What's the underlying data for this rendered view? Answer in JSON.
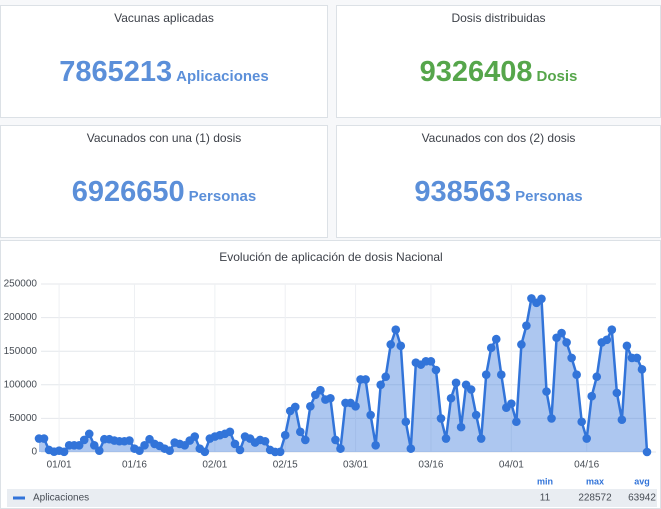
{
  "panels": [
    {
      "title": "Vacunas aplicadas",
      "value": 7865213,
      "unit": "Aplicaciones",
      "color": "#5b8fd9"
    },
    {
      "title": "Dosis distribuidas",
      "value": 9326408,
      "unit": "Dosis",
      "color": "#56a64b"
    },
    {
      "title": "Vacunados con una (1) dosis",
      "value": 6926650,
      "unit": "Personas",
      "color": "#5b8fd9"
    },
    {
      "title": "Vacunados con dos (2) dosis",
      "value": 938563,
      "unit": "Personas",
      "color": "#5b8fd9"
    }
  ],
  "chart_data": {
    "type": "line",
    "title": "Evolución de aplicación de dosis Nacional",
    "categories": [
      null,
      null,
      null,
      null,
      "01/01",
      null,
      null,
      null,
      null,
      null,
      null,
      null,
      null,
      null,
      null,
      null,
      null,
      null,
      null,
      "01/16",
      null,
      null,
      null,
      null,
      null,
      null,
      null,
      null,
      null,
      null,
      null,
      null,
      null,
      null,
      null,
      "02/01",
      null,
      null,
      null,
      null,
      null,
      null,
      null,
      null,
      null,
      null,
      null,
      null,
      null,
      "02/15",
      null,
      null,
      null,
      null,
      null,
      null,
      null,
      null,
      null,
      null,
      null,
      null,
      null,
      "03/01",
      null,
      null,
      null,
      null,
      null,
      null,
      null,
      null,
      null,
      null,
      null,
      null,
      null,
      null,
      "03/16",
      null,
      null,
      null,
      null,
      null,
      null,
      null,
      null,
      null,
      null,
      null,
      null,
      null,
      null,
      null,
      "04/01",
      null,
      null,
      null,
      null,
      null,
      null,
      null,
      null,
      null,
      null,
      null,
      null,
      null,
      null,
      "04/16",
      null,
      null,
      null,
      null,
      null,
      null,
      null,
      null,
      null,
      null,
      null,
      null
    ],
    "series": [
      {
        "name": "Aplicaciones",
        "color": "#3274d9",
        "values": [
          20000,
          20000,
          3000,
          500,
          2000,
          300,
          10000,
          10000,
          10000,
          18000,
          27000,
          10000,
          2000,
          19000,
          19000,
          17000,
          16000,
          16000,
          17000,
          5000,
          2000,
          10000,
          19000,
          12000,
          9000,
          5000,
          2000,
          14000,
          12000,
          10000,
          17000,
          23000,
          5000,
          200,
          20000,
          23000,
          25000,
          27000,
          30000,
          12000,
          3000,
          23000,
          20000,
          14000,
          18000,
          16000,
          3000,
          100,
          300,
          25000,
          61000,
          67000,
          30000,
          18000,
          68000,
          85000,
          92000,
          78000,
          80000,
          18000,
          5000,
          73000,
          73000,
          68000,
          108000,
          108000,
          55000,
          10000,
          100000,
          112000,
          160000,
          182000,
          158000,
          45000,
          5000,
          133000,
          130000,
          135000,
          135000,
          122000,
          50000,
          20000,
          80000,
          103000,
          37000,
          100000,
          93000,
          55000,
          20000,
          115000,
          155000,
          168000,
          115000,
          66000,
          72000,
          45000,
          160000,
          188000,
          228572,
          222000,
          228000,
          90000,
          50000,
          170000,
          177000,
          163000,
          140000,
          115000,
          45000,
          20000,
          83000,
          112000,
          163000,
          167000,
          182000,
          88000,
          48000,
          158000,
          140000,
          140000,
          123000,
          11
        ]
      }
    ],
    "ylim": [
      0,
      250000
    ],
    "yticks": [
      0,
      50000,
      100000,
      150000,
      200000,
      250000
    ],
    "grid": true,
    "fill": true,
    "legend_stats": [
      {
        "label": "min",
        "value": 11
      },
      {
        "label": "max",
        "value": 228572
      },
      {
        "label": "avg",
        "value": 63942
      }
    ]
  }
}
